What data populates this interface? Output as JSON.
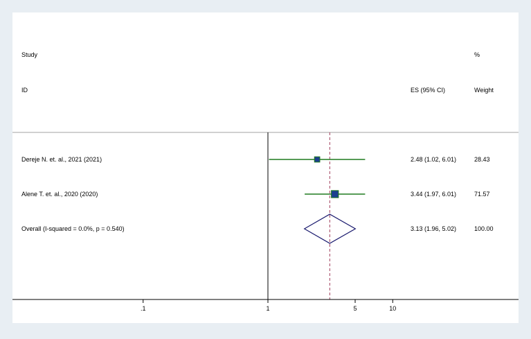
{
  "chart_data": {
    "type": "forest",
    "headers": {
      "study_line1": "Study",
      "study_line2": "ID",
      "es": "ES (95% CI)",
      "weight_line1": "%",
      "weight_line2": "Weight"
    },
    "studies": [
      {
        "label": "Dereje N. et. al., 2021 (2021)",
        "es": 2.48,
        "lower": 1.02,
        "upper": 6.01,
        "ci_text": "2.48 (1.02, 6.01)",
        "weight": "28.43"
      },
      {
        "label": "Alene T. et. al., 2020 (2020)",
        "es": 3.44,
        "lower": 1.97,
        "upper": 6.01,
        "ci_text": "3.44 (1.97, 6.01)",
        "weight": "71.57"
      }
    ],
    "overall": {
      "label": "Overall  (I-squared = 0.0%, p = 0.540)",
      "es": 3.13,
      "lower": 1.96,
      "upper": 5.02,
      "ci_text": "3.13 (1.96, 5.02)",
      "weight": "100.00"
    },
    "x_axis": {
      "scale": "log",
      "ticks": [
        0.1,
        1,
        5,
        10
      ],
      "tick_labels": [
        ".1",
        "1",
        "5",
        "10"
      ],
      "null_value": 1
    },
    "colors": {
      "background": "#e8eef3",
      "panel": "#ffffff",
      "ci_line": "#1f7a1f",
      "marker_fill": "#1c3f8f",
      "marker_stroke": "#1f7a1f",
      "diamond": "#1a1a6e",
      "overall_line": "#a03a5a",
      "axis": "#000000",
      "header_rule": "#a0a0a0"
    }
  }
}
